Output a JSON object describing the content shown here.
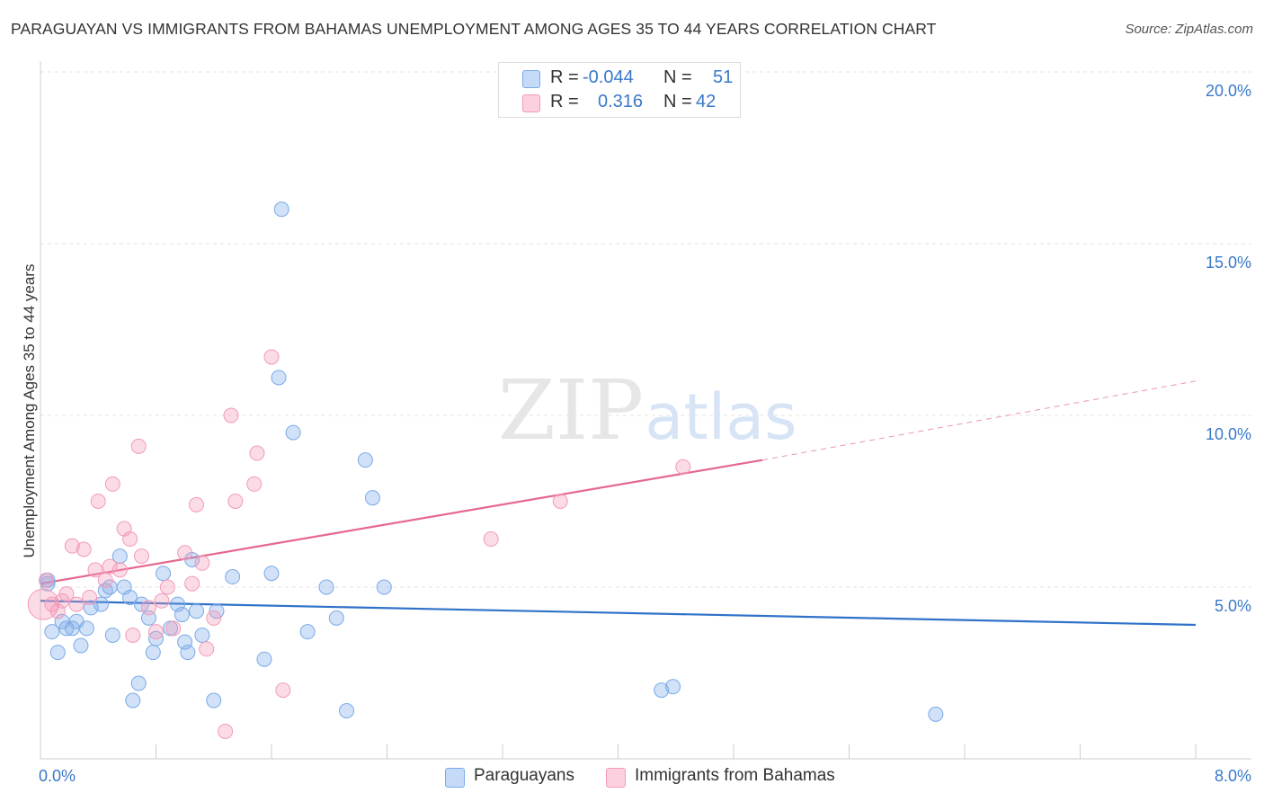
{
  "chart_data": {
    "type": "scatter",
    "title": "PARAGUAYAN VS IMMIGRANTS FROM BAHAMAS UNEMPLOYMENT AMONG AGES 35 TO 44 YEARS CORRELATION CHART",
    "source": "Source: ZipAtlas.com",
    "watermark": "ZIPatlas",
    "ylabel": "Unemployment Among Ages 35 to 44 years",
    "xlabel": "",
    "xlim": [
      0,
      8
    ],
    "ylim": [
      0,
      20
    ],
    "x_tick_labels": [
      "0.0%",
      "8.0%"
    ],
    "y_ticks": [
      5,
      10,
      15,
      20
    ],
    "y_tick_labels": [
      "5.0%",
      "10.0%",
      "15.0%",
      "20.0%"
    ],
    "grid": "horizontal dashed",
    "legend": {
      "position": "top-center",
      "rows": [
        {
          "r_label": "R =",
          "r_value": "-0.044",
          "n_label": "N =",
          "n_value": "51"
        },
        {
          "r_label": "R =",
          "r_value": "0.316",
          "n_label": "N =",
          "n_value": "42"
        }
      ]
    },
    "series": [
      {
        "name": "Paraguayans",
        "color": "#7aaae8",
        "line_color": "#2f72c8",
        "trend": {
          "x0": 0.0,
          "y0": 4.6,
          "x1": 8.0,
          "y1": 3.9
        },
        "points": [
          [
            0.05,
            5.2
          ],
          [
            0.08,
            3.7
          ],
          [
            0.12,
            3.1
          ],
          [
            0.15,
            4.0
          ],
          [
            0.18,
            3.8
          ],
          [
            0.22,
            3.8
          ],
          [
            0.25,
            4.0
          ],
          [
            0.28,
            3.3
          ],
          [
            0.32,
            3.8
          ],
          [
            0.35,
            4.4
          ],
          [
            0.42,
            4.5
          ],
          [
            0.45,
            4.9
          ],
          [
            0.48,
            5.0
          ],
          [
            0.5,
            3.6
          ],
          [
            0.55,
            5.9
          ],
          [
            0.58,
            5.0
          ],
          [
            0.62,
            4.7
          ],
          [
            0.64,
            1.7
          ],
          [
            0.68,
            2.2
          ],
          [
            0.7,
            4.5
          ],
          [
            0.75,
            4.1
          ],
          [
            0.78,
            3.1
          ],
          [
            0.8,
            3.5
          ],
          [
            0.85,
            5.4
          ],
          [
            0.9,
            3.8
          ],
          [
            0.95,
            4.5
          ],
          [
            0.98,
            4.2
          ],
          [
            1.0,
            3.4
          ],
          [
            1.02,
            3.1
          ],
          [
            1.05,
            5.8
          ],
          [
            1.08,
            4.3
          ],
          [
            1.12,
            3.6
          ],
          [
            1.2,
            1.7
          ],
          [
            1.22,
            4.3
          ],
          [
            1.33,
            5.3
          ],
          [
            1.55,
            2.9
          ],
          [
            1.6,
            5.4
          ],
          [
            1.65,
            11.1
          ],
          [
            1.67,
            16.0
          ],
          [
            1.75,
            9.5
          ],
          [
            1.85,
            3.7
          ],
          [
            1.98,
            5.0
          ],
          [
            2.05,
            4.1
          ],
          [
            2.12,
            1.4
          ],
          [
            2.25,
            8.7
          ],
          [
            2.3,
            7.6
          ],
          [
            2.38,
            5.0
          ],
          [
            4.3,
            2.0
          ],
          [
            4.38,
            2.1
          ],
          [
            6.2,
            1.3
          ],
          [
            0.05,
            5.1
          ]
        ]
      },
      {
        "name": "Immigrants from Bahamas",
        "color": "#f39ab8",
        "line_color": "#e5688f",
        "trend": {
          "x0": 0.0,
          "y0": 5.1,
          "x1": 5.0,
          "y1": 8.7
        },
        "trend_dashed": {
          "x0": 5.0,
          "y0": 8.7,
          "x1": 8.0,
          "y1": 11.0
        },
        "points": [
          [
            0.02,
            4.5
          ],
          [
            0.04,
            5.2
          ],
          [
            0.08,
            4.5
          ],
          [
            0.12,
            4.3
          ],
          [
            0.15,
            4.6
          ],
          [
            0.18,
            4.8
          ],
          [
            0.22,
            6.2
          ],
          [
            0.25,
            4.5
          ],
          [
            0.3,
            6.1
          ],
          [
            0.34,
            4.7
          ],
          [
            0.38,
            5.5
          ],
          [
            0.4,
            7.5
          ],
          [
            0.45,
            5.2
          ],
          [
            0.48,
            5.6
          ],
          [
            0.5,
            8.0
          ],
          [
            0.55,
            5.5
          ],
          [
            0.58,
            6.7
          ],
          [
            0.62,
            6.4
          ],
          [
            0.64,
            3.6
          ],
          [
            0.68,
            9.1
          ],
          [
            0.7,
            5.9
          ],
          [
            0.75,
            4.4
          ],
          [
            0.8,
            3.7
          ],
          [
            0.84,
            4.6
          ],
          [
            0.88,
            5.0
          ],
          [
            0.92,
            3.8
          ],
          [
            1.0,
            6.0
          ],
          [
            1.05,
            5.1
          ],
          [
            1.08,
            7.4
          ],
          [
            1.12,
            5.7
          ],
          [
            1.15,
            3.2
          ],
          [
            1.2,
            4.1
          ],
          [
            1.28,
            0.8
          ],
          [
            1.32,
            10.0
          ],
          [
            1.35,
            7.5
          ],
          [
            1.48,
            8.0
          ],
          [
            1.5,
            8.9
          ],
          [
            1.6,
            11.7
          ],
          [
            1.68,
            2.0
          ],
          [
            3.12,
            6.4
          ],
          [
            3.6,
            7.5
          ],
          [
            4.45,
            8.5
          ]
        ]
      }
    ]
  }
}
